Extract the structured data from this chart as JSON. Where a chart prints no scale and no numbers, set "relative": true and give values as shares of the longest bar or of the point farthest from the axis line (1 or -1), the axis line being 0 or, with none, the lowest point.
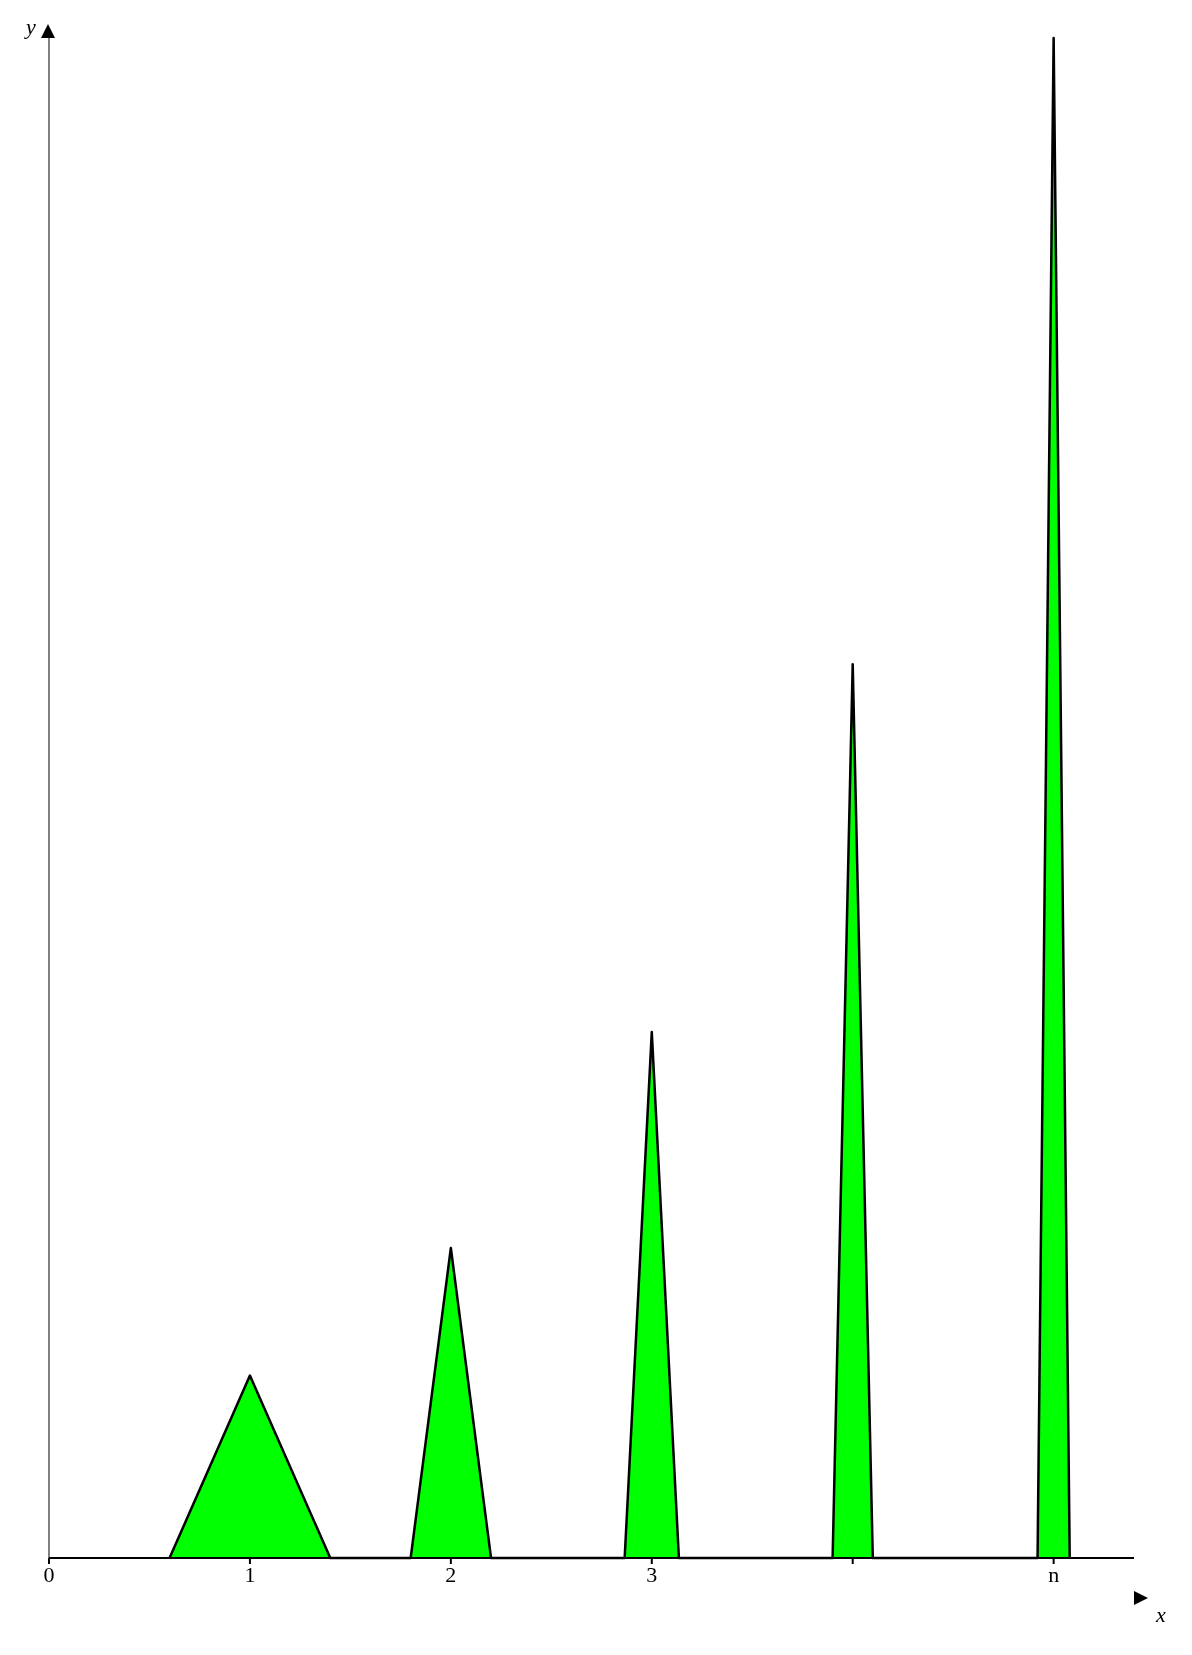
{
  "chart_data": {
    "type": "area",
    "relative": true,
    "xlabel": "x",
    "ylabel": "y",
    "xlim": [
      0,
      5.4
    ],
    "xticks": [
      {
        "value": 0,
        "label": "0"
      },
      1,
      2,
      3,
      {
        "value": 4,
        "label": null
      },
      {
        "value": 5,
        "label": "n"
      }
    ],
    "series": [
      {
        "color": "#00ff00",
        "x": [
          0.6,
          1,
          1.4,
          1.8,
          2,
          2.2,
          2.865,
          3,
          3.135,
          3.9,
          4,
          4.1,
          4.92,
          5,
          5.08
        ],
        "values": [
          0,
          0.12,
          0,
          0,
          0.204,
          0,
          0,
          0.346,
          0,
          0,
          0.588,
          0,
          0,
          1,
          0
        ]
      }
    ]
  }
}
